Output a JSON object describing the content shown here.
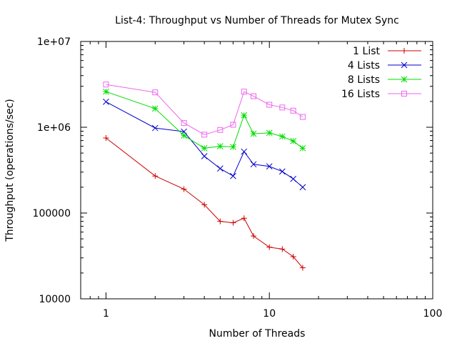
{
  "chart_data": {
    "type": "line",
    "title": "List-4: Throughput vs Number of Threads for Mutex Sync",
    "xlabel": "Number of Threads",
    "ylabel": "Throughput (operations/sec)",
    "x_scale": "log",
    "y_scale": "log",
    "xlim": [
      0.7,
      100
    ],
    "ylim": [
      10000,
      10000000
    ],
    "x_ticks": [
      1,
      10,
      100
    ],
    "x_tick_labels": [
      "1",
      "10",
      "100"
    ],
    "y_ticks": [
      10000,
      100000,
      1000000,
      10000000
    ],
    "y_tick_labels": [
      "10000",
      "100000",
      "1e+06",
      "1e+07"
    ],
    "grid": false,
    "legend_position": "top-right",
    "series": [
      {
        "name": "1 List",
        "color": "#cc0000",
        "marker": "plus",
        "x": [
          1,
          2,
          3,
          4,
          5,
          6,
          7,
          8,
          10,
          12,
          14,
          16
        ],
        "y": [
          750000,
          270000,
          190000,
          125000,
          80000,
          77000,
          87000,
          54000,
          40000,
          38000,
          31000,
          23000
        ]
      },
      {
        "name": "4 Lists",
        "color": "#0000cc",
        "marker": "cross",
        "x": [
          1,
          2,
          3,
          4,
          5,
          6,
          7,
          8,
          10,
          12,
          14,
          16
        ],
        "y": [
          1980000,
          980000,
          890000,
          460000,
          330000,
          270000,
          520000,
          370000,
          350000,
          305000,
          250000,
          200000
        ]
      },
      {
        "name": "8 Lists",
        "color": "#00dd00",
        "marker": "star",
        "x": [
          1,
          2,
          3,
          4,
          5,
          6,
          7,
          8,
          10,
          12,
          14,
          16
        ],
        "y": [
          2600000,
          1650000,
          800000,
          570000,
          600000,
          590000,
          1380000,
          840000,
          860000,
          780000,
          690000,
          570000
        ]
      },
      {
        "name": "16 Lists",
        "color": "#ee66ee",
        "marker": "square",
        "x": [
          1,
          2,
          3,
          4,
          5,
          6,
          7,
          8,
          10,
          12,
          14,
          16
        ],
        "y": [
          3150000,
          2550000,
          1120000,
          820000,
          930000,
          1070000,
          2600000,
          2300000,
          1830000,
          1700000,
          1560000,
          1320000
        ]
      }
    ]
  }
}
